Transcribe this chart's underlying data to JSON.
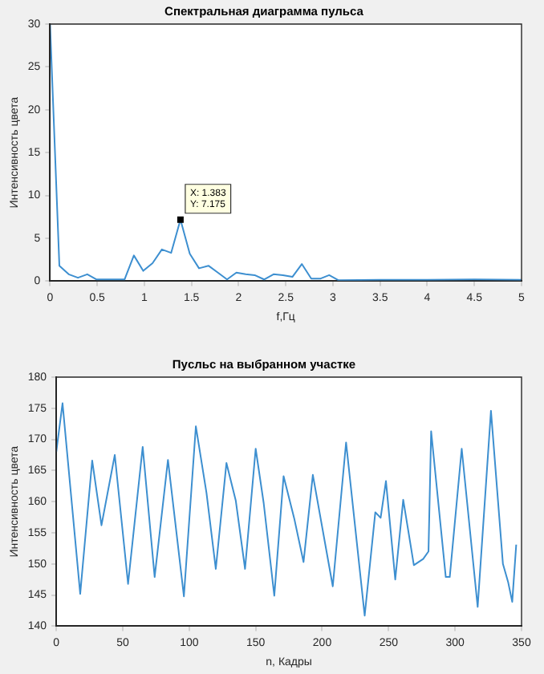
{
  "chart_data": [
    {
      "type": "line",
      "title": "Спектральная диаграмма пульса",
      "xlabel": "f,Гц",
      "ylabel": "Интенсивность цвета",
      "marker": "none",
      "grid": false,
      "xlim": [
        0,
        5
      ],
      "xticks": [
        0,
        0.5,
        1,
        1.5,
        2,
        2.5,
        3,
        3.5,
        4,
        4.5,
        5
      ],
      "ylim": [
        0,
        30
      ],
      "yticks": [
        0,
        5,
        10,
        15,
        20,
        25,
        30
      ],
      "annotations": [
        {
          "text": "X: 1.383\nY: 7.175",
          "x": 1.383,
          "y": 7.175
        }
      ],
      "series": [
        {
          "color": "#3d8fd0",
          "x": [
            0,
            0.099,
            0.198,
            0.296,
            0.395,
            0.494,
            0.593,
            0.692,
            0.79,
            0.889,
            0.988,
            1.087,
            1.186,
            1.284,
            1.383,
            1.482,
            1.58,
            1.68,
            1.78,
            1.877,
            1.976,
            2.075,
            2.17,
            2.27,
            2.37,
            2.47,
            2.57,
            2.67,
            2.77,
            2.87,
            2.96,
            3.06,
            3.5,
            4,
            4.5,
            5
          ],
          "values": [
            30,
            1.8,
            0.8,
            0.4,
            0.8,
            0.2,
            0.2,
            0.2,
            0.2,
            3,
            1.2,
            2.1,
            3.7,
            3.3,
            7.175,
            3.2,
            1.5,
            1.8,
            1,
            0.2,
            1,
            0.8,
            0.7,
            0.2,
            0.8,
            0.7,
            0.5,
            2,
            0.3,
            0.3,
            0.7,
            0.1,
            0.15,
            0.15,
            0.2,
            0.15
          ]
        }
      ]
    },
    {
      "type": "line",
      "title": "Пуcльс на выбранном участке",
      "xlabel": "n, Кадры",
      "ylabel": "Интенсивность цвета",
      "marker": "none",
      "grid": false,
      "xlim": [
        0,
        350
      ],
      "xticks": [
        0,
        50,
        100,
        150,
        200,
        250,
        300,
        350
      ],
      "ylim": [
        140,
        180
      ],
      "yticks": [
        140,
        145,
        150,
        155,
        160,
        165,
        170,
        175,
        180
      ],
      "series": [
        {
          "color": "#3d8fd0",
          "x": [
            0,
            4.7,
            18,
            27,
            34,
            44,
            54,
            65,
            74,
            84,
            96,
            105,
            113,
            120,
            128,
            135,
            142,
            150,
            156,
            164,
            171,
            179,
            186,
            193,
            208,
            218,
            232,
            240,
            244,
            248,
            255,
            261,
            269,
            276,
            280,
            282,
            293,
            296,
            305,
            317,
            327,
            336,
            340,
            343,
            346
          ],
          "values": [
            168,
            175.8,
            145.2,
            166.6,
            156.2,
            167.5,
            146.8,
            168.8,
            147.9,
            166.7,
            144.8,
            172.1,
            161.4,
            149.2,
            166.2,
            160.2,
            149.2,
            168.5,
            159.8,
            144.9,
            164.1,
            157.3,
            150.3,
            164.3,
            146.4,
            169.5,
            141.7,
            158.3,
            157.4,
            163.3,
            147.5,
            160.3,
            149.8,
            150.8,
            152,
            171.3,
            147.9,
            147.9,
            168.5,
            143.1,
            174.6,
            150,
            147,
            143.9,
            153.1
          ]
        }
      ]
    }
  ]
}
